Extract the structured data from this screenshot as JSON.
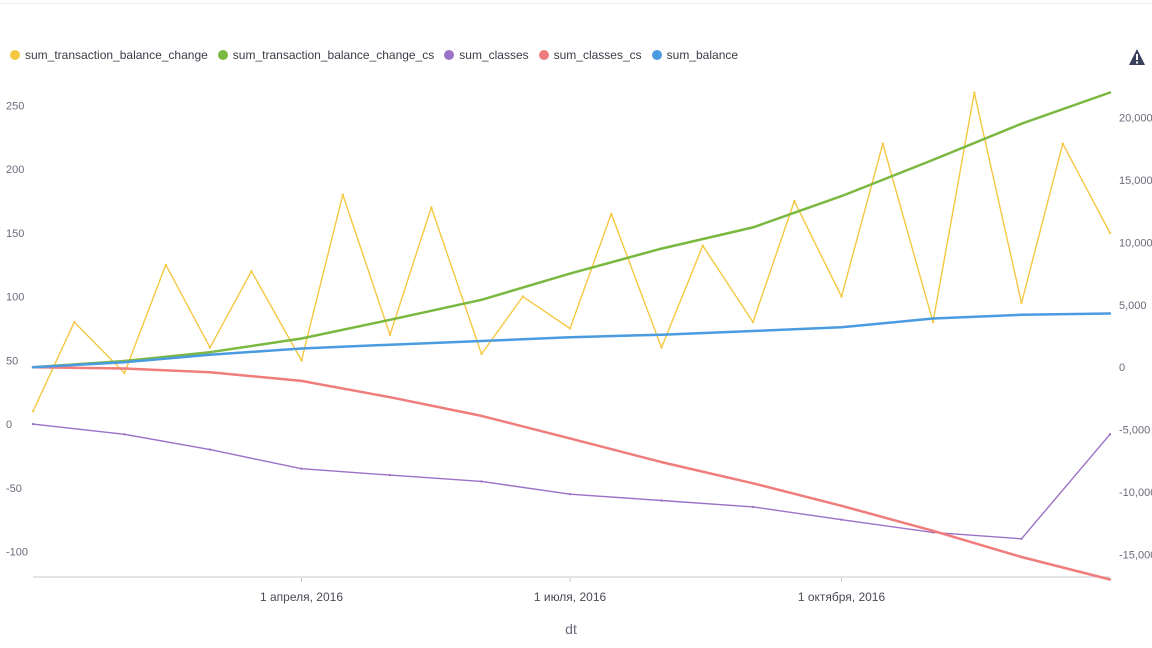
{
  "legend": [
    {
      "name": "sum_transaction_balance_change",
      "color": "#f5c842"
    },
    {
      "name": "sum_transaction_balance_change_cs",
      "color": "#7ab840"
    },
    {
      "name": "sum_classes",
      "color": "#9b72c7"
    },
    {
      "name": "sum_classes_cs",
      "color": "#f07c7c"
    },
    {
      "name": "sum_balance",
      "color": "#4a9be0"
    }
  ],
  "warning_icon": "warning-triangle-icon",
  "chart_data": {
    "type": "line",
    "xlabel": "dt",
    "x_ticks": [
      "1 апреля, 2016",
      "1 июля, 2016",
      "1 октября, 2016"
    ],
    "x_range": [
      "2016-01-01",
      "2016-12-31"
    ],
    "y_left": {
      "ticks": [
        "250",
        "200",
        "150",
        "100",
        "50",
        "0",
        "-50",
        "-100"
      ],
      "range": [
        -120,
        270
      ]
    },
    "y_right": {
      "ticks": [
        "20,000",
        "15,000",
        "10,000",
        "5,000",
        "0",
        "-5,000",
        "-10,000",
        "-15,000"
      ],
      "range": [
        -16800,
        23000
      ]
    },
    "series": [
      {
        "name": "sum_transaction_balance_change",
        "axis": "left",
        "color": "#f5c842",
        "x": [
          "2016-01-01",
          "2016-01-15",
          "2016-02-01",
          "2016-02-15",
          "2016-03-01",
          "2016-03-15",
          "2016-04-01",
          "2016-04-15",
          "2016-05-01",
          "2016-05-15",
          "2016-06-01",
          "2016-06-15",
          "2016-07-01",
          "2016-07-15",
          "2016-08-01",
          "2016-08-15",
          "2016-09-01",
          "2016-09-15",
          "2016-10-01",
          "2016-10-15",
          "2016-11-01",
          "2016-11-15",
          "2016-12-01",
          "2016-12-15",
          "2016-12-31"
        ],
        "values": [
          10,
          80,
          40,
          125,
          60,
          120,
          50,
          180,
          70,
          170,
          55,
          100,
          75,
          165,
          60,
          140,
          80,
          175,
          100,
          220,
          80,
          260,
          95,
          220,
          150
        ]
      },
      {
        "name": "sum_transaction_balance_change_cs",
        "axis": "right",
        "color": "#7ab840",
        "x": [
          "2016-01-01",
          "2016-02-01",
          "2016-03-01",
          "2016-04-01",
          "2016-05-01",
          "2016-06-01",
          "2016-07-01",
          "2016-08-01",
          "2016-09-01",
          "2016-10-01",
          "2016-11-01",
          "2016-12-01",
          "2016-12-31"
        ],
        "values": [
          0,
          500,
          1200,
          2300,
          3800,
          5400,
          7500,
          9500,
          11200,
          13700,
          16600,
          19500,
          22000
        ]
      },
      {
        "name": "sum_classes",
        "axis": "left",
        "color": "#9b72c7",
        "x": [
          "2016-01-01",
          "2016-02-01",
          "2016-03-01",
          "2016-04-01",
          "2016-05-01",
          "2016-06-01",
          "2016-07-01",
          "2016-08-01",
          "2016-09-01",
          "2016-10-01",
          "2016-11-01",
          "2016-12-01",
          "2016-12-31"
        ],
        "values": [
          0,
          -8,
          -20,
          -35,
          -40,
          -45,
          -55,
          -60,
          -65,
          -75,
          -85,
          -90,
          -8
        ]
      },
      {
        "name": "sum_classes_cs",
        "axis": "right",
        "color": "#f07c7c",
        "x": [
          "2016-01-01",
          "2016-02-01",
          "2016-03-01",
          "2016-04-01",
          "2016-05-01",
          "2016-06-01",
          "2016-07-01",
          "2016-08-01",
          "2016-09-01",
          "2016-10-01",
          "2016-11-01",
          "2016-12-01",
          "2016-12-31"
        ],
        "values": [
          0,
          -100,
          -400,
          -1100,
          -2400,
          -3900,
          -5700,
          -7600,
          -9300,
          -11100,
          -13100,
          -15200,
          -17000
        ]
      },
      {
        "name": "sum_balance",
        "axis": "right",
        "color": "#4a9be0",
        "x": [
          "2016-01-01",
          "2016-02-01",
          "2016-03-01",
          "2016-04-01",
          "2016-05-01",
          "2016-06-01",
          "2016-07-01",
          "2016-08-01",
          "2016-09-01",
          "2016-10-01",
          "2016-11-01",
          "2016-12-01",
          "2016-12-31"
        ],
        "values": [
          0,
          400,
          1000,
          1500,
          1800,
          2100,
          2400,
          2600,
          2900,
          3200,
          3900,
          4200,
          4300
        ]
      }
    ]
  }
}
